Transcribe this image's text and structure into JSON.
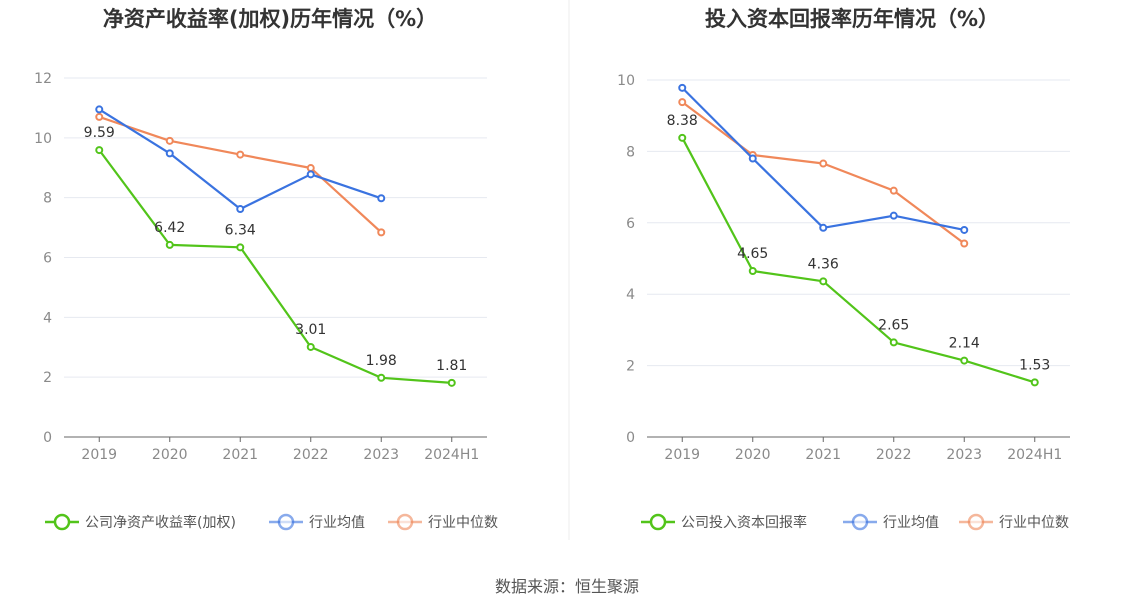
{
  "source": "数据来源：恒生聚源",
  "colors": {
    "company": "#52c41a",
    "avg": "#3a73e0",
    "median": "#f0885a",
    "grid": "#e6e9f0",
    "axis": "#666666"
  },
  "chart_data": [
    {
      "type": "line",
      "title": "净资产收益率(加权)历年情况（%）",
      "categories": [
        "2019",
        "2020",
        "2021",
        "2022",
        "2023",
        "2024H1"
      ],
      "ylim": [
        0,
        12
      ],
      "yticks": [
        0,
        2,
        4,
        6,
        8,
        10,
        12
      ],
      "grid": true,
      "legend_position": "bottom",
      "series": [
        {
          "name": "公司净资产收益率(加权)",
          "key": "company",
          "values": [
            9.59,
            6.42,
            6.34,
            3.01,
            1.98,
            1.81
          ],
          "labels": [
            "9.59",
            "6.42",
            "6.34",
            "3.01",
            "1.98",
            "1.81"
          ]
        },
        {
          "name": "行业均值",
          "key": "avg",
          "values": [
            10.95,
            9.48,
            7.62,
            8.78,
            7.98,
            null
          ]
        },
        {
          "name": "行业中位数",
          "key": "median",
          "values": [
            10.7,
            9.9,
            9.44,
            8.99,
            6.84,
            null
          ]
        }
      ]
    },
    {
      "type": "line",
      "title": "投入资本回报率历年情况（%）",
      "categories": [
        "2019",
        "2020",
        "2021",
        "2022",
        "2023",
        "2024H1"
      ],
      "ylim": [
        0,
        10
      ],
      "yticks": [
        0,
        2,
        4,
        6,
        8,
        10
      ],
      "grid": true,
      "legend_position": "bottom",
      "series": [
        {
          "name": "公司投入资本回报率",
          "key": "company",
          "values": [
            8.38,
            4.65,
            4.36,
            2.65,
            2.14,
            1.53
          ],
          "labels": [
            "8.38",
            "4.65",
            "4.36",
            "2.65",
            "2.14",
            "1.53"
          ]
        },
        {
          "name": "行业均值",
          "key": "avg",
          "values": [
            9.78,
            7.8,
            5.86,
            6.2,
            5.8,
            null
          ]
        },
        {
          "name": "行业中位数",
          "key": "median",
          "values": [
            9.38,
            7.9,
            7.66,
            6.9,
            5.42,
            null
          ]
        }
      ]
    }
  ]
}
